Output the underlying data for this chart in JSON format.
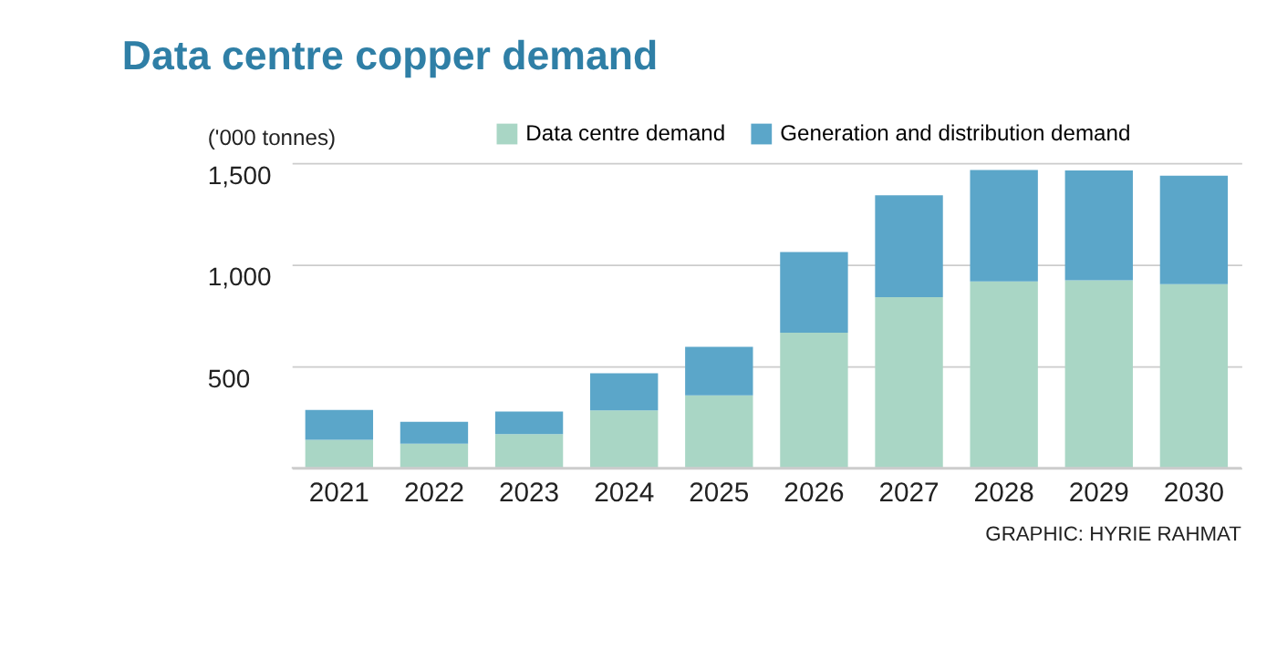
{
  "chart_data": {
    "type": "bar",
    "title": "Data centre copper demand",
    "ylabel": "('000 tonnes)",
    "stacked": true,
    "categories": [
      "2021",
      "2022",
      "2023",
      "2024",
      "2025",
      "2026",
      "2027",
      "2028",
      "2029",
      "2030"
    ],
    "series": [
      {
        "name": "Data centre demand",
        "color": "#a9d6c5",
        "values": [
          138,
          119,
          166,
          282,
          357,
          665,
          839,
          917,
          922,
          903
        ]
      },
      {
        "name": "Generation and distribution demand",
        "color": "#5ba6c9",
        "values": [
          147,
          108,
          111,
          183,
          238,
          396,
          501,
          548,
          540,
          534
        ]
      }
    ],
    "ylim": [
      0,
      1500
    ],
    "yticks": [
      {
        "value": 0,
        "label": null
      },
      {
        "value": 500,
        "label": "500"
      },
      {
        "value": 1000,
        "label": "1,000"
      },
      {
        "value": 1500,
        "label": "1,500"
      }
    ],
    "grid": "y",
    "legend": "top right",
    "annotations": [
      "GRAPHIC: HYRIE RAHMAT"
    ]
  }
}
